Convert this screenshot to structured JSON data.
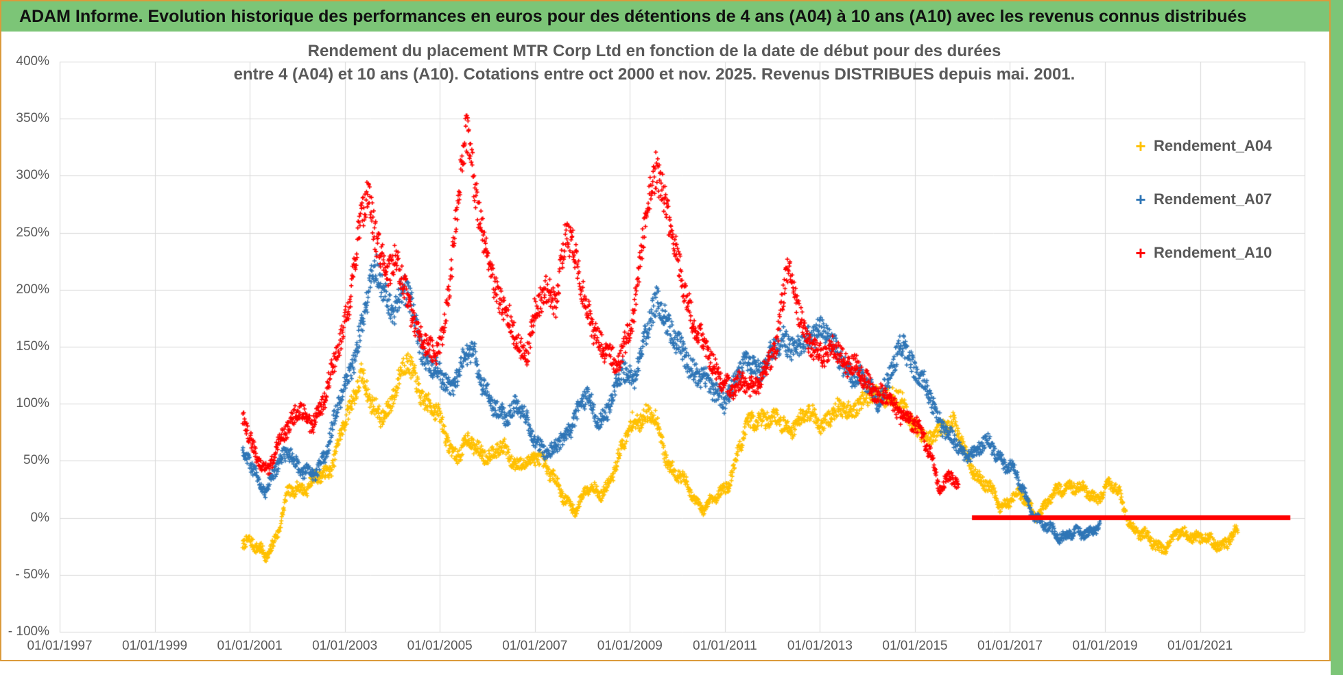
{
  "banner": {
    "title": "ADAM Informe. Evolution historique des performances en euros pour des détentions de 4 ans (A04) à 10 ans (A10) avec les revenus connus distribués"
  },
  "colors": {
    "banner_bg": "#7CC577",
    "strip_bg": "#7CC577",
    "frame_border": "#DB9A3B",
    "grid": "#D9D9D9",
    "axis_text": "#595959",
    "title_text": "#595959"
  },
  "chart_data": {
    "type": "scatter",
    "title_line1": "Rendement du placement MTR Corp Ltd en fonction de la date de début pour des durées",
    "title_line2": "entre 4 (A04) et 10 ans (A10). Cotations entre oct 2000 et nov. 2025. Revenus DISTRIBUES depuis mai. 2001.",
    "marker": "plus",
    "grid": true,
    "legend_position": "right-inside",
    "x_range": [
      1997.0,
      2023.2
    ],
    "y_range": [
      -100,
      400
    ],
    "x_ticks": [
      "01/01/1997",
      "01/01/1999",
      "01/01/2001",
      "01/01/2003",
      "01/01/2005",
      "01/01/2007",
      "01/01/2009",
      "01/01/2011",
      "01/01/2013",
      "01/01/2015",
      "01/01/2017",
      "01/01/2019",
      "01/01/2021"
    ],
    "x_tick_years": [
      1997,
      1999,
      2001,
      2003,
      2005,
      2007,
      2009,
      2011,
      2013,
      2015,
      2017,
      2019,
      2021
    ],
    "y_ticks": [
      "400%",
      "350%",
      "300%",
      "250%",
      "200%",
      "150%",
      "100%",
      "50%",
      "0%",
      "- 50%",
      "- 100%"
    ],
    "y_tick_values": [
      400,
      350,
      300,
      250,
      200,
      150,
      100,
      50,
      0,
      -50,
      -100
    ],
    "density": {
      "dt": 0.008,
      "jitter_base": 3.5,
      "jitter_slope": 0.045
    },
    "zero_line": {
      "color": "#FF0000",
      "y": 0,
      "x_start": 2016.2,
      "x_end": 2022.9,
      "width": 7
    },
    "series": [
      {
        "name": "Rendement_A04",
        "color": "#FFC000",
        "points": [
          [
            2000.85,
            -20
          ],
          [
            2001.1,
            -27
          ],
          [
            2001.35,
            -30
          ],
          [
            2001.6,
            -15
          ],
          [
            2001.8,
            20
          ],
          [
            2002.0,
            30
          ],
          [
            2002.2,
            25
          ],
          [
            2002.45,
            35
          ],
          [
            2002.7,
            45
          ],
          [
            2002.95,
            75
          ],
          [
            2003.15,
            100
          ],
          [
            2003.35,
            130
          ],
          [
            2003.55,
            100
          ],
          [
            2003.75,
            85
          ],
          [
            2003.95,
            100
          ],
          [
            2004.15,
            125
          ],
          [
            2004.35,
            135
          ],
          [
            2004.55,
            115
          ],
          [
            2004.75,
            100
          ],
          [
            2004.95,
            90
          ],
          [
            2005.15,
            70
          ],
          [
            2005.35,
            55
          ],
          [
            2005.6,
            65
          ],
          [
            2005.85,
            60
          ],
          [
            2006.1,
            55
          ],
          [
            2006.35,
            60
          ],
          [
            2006.6,
            50
          ],
          [
            2006.85,
            45
          ],
          [
            2007.1,
            55
          ],
          [
            2007.35,
            40
          ],
          [
            2007.6,
            15
          ],
          [
            2007.85,
            10
          ],
          [
            2008.1,
            25
          ],
          [
            2008.35,
            20
          ],
          [
            2008.6,
            35
          ],
          [
            2008.85,
            60
          ],
          [
            2009.05,
            85
          ],
          [
            2009.3,
            90
          ],
          [
            2009.55,
            85
          ],
          [
            2009.8,
            50
          ],
          [
            2010.05,
            35
          ],
          [
            2010.3,
            20
          ],
          [
            2010.55,
            10
          ],
          [
            2010.8,
            15
          ],
          [
            2011.05,
            30
          ],
          [
            2011.3,
            60
          ],
          [
            2011.55,
            85
          ],
          [
            2011.8,
            90
          ],
          [
            2012.05,
            85
          ],
          [
            2012.3,
            80
          ],
          [
            2012.55,
            85
          ],
          [
            2012.8,
            90
          ],
          [
            2013.05,
            85
          ],
          [
            2013.3,
            90
          ],
          [
            2013.55,
            95
          ],
          [
            2013.8,
            100
          ],
          [
            2014.05,
            105
          ],
          [
            2014.3,
            110
          ],
          [
            2014.55,
            105
          ],
          [
            2014.8,
            95
          ],
          [
            2015.05,
            80
          ],
          [
            2015.3,
            65
          ],
          [
            2015.55,
            80
          ],
          [
            2015.8,
            85
          ],
          [
            2016.05,
            55
          ],
          [
            2016.3,
            40
          ],
          [
            2016.55,
            25
          ],
          [
            2016.8,
            10
          ],
          [
            2017.05,
            20
          ],
          [
            2017.3,
            15
          ],
          [
            2017.55,
            5
          ],
          [
            2017.8,
            12
          ],
          [
            2018.05,
            25
          ],
          [
            2018.3,
            30
          ],
          [
            2018.55,
            22
          ],
          [
            2018.8,
            18
          ],
          [
            2019.05,
            30
          ],
          [
            2019.3,
            20
          ],
          [
            2019.55,
            -5
          ],
          [
            2019.8,
            -18
          ],
          [
            2020.05,
            -22
          ],
          [
            2020.3,
            -25
          ],
          [
            2020.55,
            -15
          ],
          [
            2020.8,
            -12
          ],
          [
            2021.05,
            -20
          ],
          [
            2021.3,
            -23
          ],
          [
            2021.55,
            -20
          ],
          [
            2021.8,
            -14
          ]
        ]
      },
      {
        "name": "Rendement_A07",
        "color": "#2E75B6",
        "points": [
          [
            2000.85,
            55
          ],
          [
            2001.1,
            40
          ],
          [
            2001.35,
            25
          ],
          [
            2001.6,
            45
          ],
          [
            2001.85,
            60
          ],
          [
            2002.1,
            40
          ],
          [
            2002.35,
            35
          ],
          [
            2002.6,
            60
          ],
          [
            2002.85,
            95
          ],
          [
            2003.05,
            120
          ],
          [
            2003.25,
            150
          ],
          [
            2003.45,
            185
          ],
          [
            2003.65,
            220
          ],
          [
            2003.85,
            195
          ],
          [
            2004.05,
            180
          ],
          [
            2004.25,
            200
          ],
          [
            2004.45,
            185
          ],
          [
            2004.65,
            140
          ],
          [
            2004.85,
            130
          ],
          [
            2005.05,
            125
          ],
          [
            2005.25,
            115
          ],
          [
            2005.5,
            135
          ],
          [
            2005.7,
            150
          ],
          [
            2005.9,
            120
          ],
          [
            2006.1,
            95
          ],
          [
            2006.35,
            90
          ],
          [
            2006.6,
            100
          ],
          [
            2006.85,
            80
          ],
          [
            2007.1,
            65
          ],
          [
            2007.35,
            55
          ],
          [
            2007.6,
            70
          ],
          [
            2007.85,
            90
          ],
          [
            2008.1,
            105
          ],
          [
            2008.35,
            85
          ],
          [
            2008.6,
            100
          ],
          [
            2008.85,
            130
          ],
          [
            2009.1,
            125
          ],
          [
            2009.35,
            160
          ],
          [
            2009.6,
            195
          ],
          [
            2009.8,
            170
          ],
          [
            2010.0,
            150
          ],
          [
            2010.25,
            135
          ],
          [
            2010.5,
            125
          ],
          [
            2010.75,
            110
          ],
          [
            2011.0,
            105
          ],
          [
            2011.25,
            120
          ],
          [
            2011.5,
            140
          ],
          [
            2011.75,
            130
          ],
          [
            2012.0,
            145
          ],
          [
            2012.25,
            160
          ],
          [
            2012.5,
            145
          ],
          [
            2012.75,
            155
          ],
          [
            2013.0,
            170
          ],
          [
            2013.25,
            150
          ],
          [
            2013.5,
            135
          ],
          [
            2013.75,
            125
          ],
          [
            2014.0,
            115
          ],
          [
            2014.25,
            105
          ],
          [
            2014.5,
            125
          ],
          [
            2014.75,
            155
          ],
          [
            2015.0,
            130
          ],
          [
            2015.25,
            110
          ],
          [
            2015.5,
            90
          ],
          [
            2015.75,
            70
          ],
          [
            2016.0,
            55
          ],
          [
            2016.25,
            60
          ],
          [
            2016.5,
            65
          ],
          [
            2016.75,
            55
          ],
          [
            2017.0,
            45
          ],
          [
            2017.25,
            25
          ],
          [
            2017.5,
            5
          ],
          [
            2017.75,
            -10
          ],
          [
            2018.0,
            -15
          ],
          [
            2018.25,
            -12
          ],
          [
            2018.5,
            -18
          ],
          [
            2018.75,
            -8
          ],
          [
            2018.92,
            -3
          ]
        ]
      },
      {
        "name": "Rendement_A10",
        "color": "#FF0000",
        "points": [
          [
            2000.85,
            85
          ],
          [
            2001.1,
            60
          ],
          [
            2001.4,
            40
          ],
          [
            2001.7,
            75
          ],
          [
            2002.0,
            95
          ],
          [
            2002.3,
            80
          ],
          [
            2002.6,
            110
          ],
          [
            2002.9,
            150
          ],
          [
            2003.1,
            195
          ],
          [
            2003.35,
            265
          ],
          [
            2003.5,
            280
          ],
          [
            2003.7,
            240
          ],
          [
            2003.9,
            215
          ],
          [
            2004.1,
            225
          ],
          [
            2004.3,
            195
          ],
          [
            2004.6,
            155
          ],
          [
            2004.9,
            140
          ],
          [
            2005.1,
            170
          ],
          [
            2005.3,
            240
          ],
          [
            2005.55,
            345
          ],
          [
            2005.75,
            290
          ],
          [
            2005.95,
            235
          ],
          [
            2006.15,
            200
          ],
          [
            2006.4,
            185
          ],
          [
            2006.6,
            155
          ],
          [
            2006.8,
            135
          ],
          [
            2007.0,
            185
          ],
          [
            2007.2,
            200
          ],
          [
            2007.45,
            185
          ],
          [
            2007.65,
            255
          ],
          [
            2007.8,
            240
          ],
          [
            2008.0,
            195
          ],
          [
            2008.2,
            170
          ],
          [
            2008.45,
            150
          ],
          [
            2008.7,
            130
          ],
          [
            2008.9,
            155
          ],
          [
            2009.1,
            185
          ],
          [
            2009.3,
            250
          ],
          [
            2009.55,
            310
          ],
          [
            2009.75,
            275
          ],
          [
            2009.95,
            235
          ],
          [
            2010.15,
            200
          ],
          [
            2010.4,
            165
          ],
          [
            2010.65,
            140
          ],
          [
            2010.9,
            125
          ],
          [
            2011.15,
            110
          ],
          [
            2011.4,
            120
          ],
          [
            2011.65,
            115
          ],
          [
            2011.9,
            130
          ],
          [
            2012.1,
            155
          ],
          [
            2012.3,
            225
          ],
          [
            2012.5,
            185
          ],
          [
            2012.7,
            160
          ],
          [
            2012.9,
            150
          ],
          [
            2013.1,
            140
          ],
          [
            2013.35,
            150
          ],
          [
            2013.6,
            135
          ],
          [
            2013.85,
            125
          ],
          [
            2014.1,
            115
          ],
          [
            2014.35,
            105
          ],
          [
            2014.6,
            95
          ],
          [
            2014.85,
            90
          ],
          [
            2015.1,
            75
          ],
          [
            2015.35,
            55
          ],
          [
            2015.55,
            25
          ],
          [
            2015.75,
            35
          ],
          [
            2015.92,
            25
          ]
        ]
      }
    ]
  }
}
